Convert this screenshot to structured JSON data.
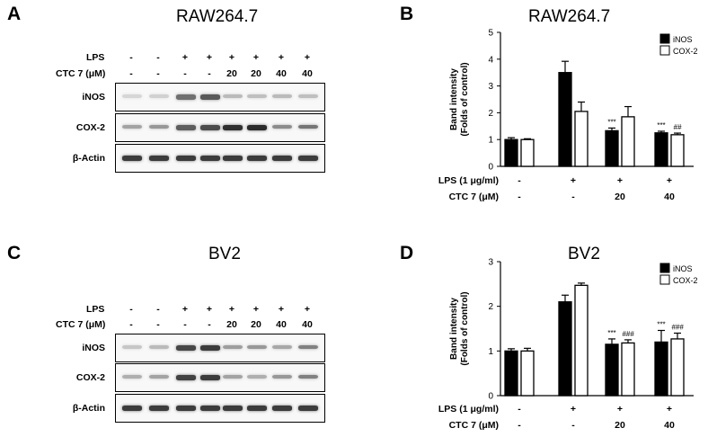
{
  "panels": {
    "A": {
      "letter": "A",
      "title": "RAW264.7"
    },
    "B": {
      "letter": "B",
      "title": "RAW264.7"
    },
    "C": {
      "letter": "C",
      "title": "BV2"
    },
    "D": {
      "letter": "D",
      "title": "BV2"
    }
  },
  "blots": {
    "lps_label": "LPS",
    "ctc_label": "CTC 7 (μM)",
    "lps_values": [
      "-",
      "-",
      "+",
      "+",
      "+",
      "+",
      "+",
      "+"
    ],
    "ctc_values": [
      "-",
      "-",
      "-",
      "-",
      "20",
      "20",
      "40",
      "40"
    ],
    "rows": [
      "iNOS",
      "COX-2",
      "β-Actin"
    ],
    "intensity_A": {
      "iNOS": [
        0.18,
        0.2,
        0.62,
        0.72,
        0.3,
        0.28,
        0.3,
        0.28
      ],
      "COX-2": [
        0.4,
        0.45,
        0.7,
        0.78,
        0.9,
        0.92,
        0.5,
        0.6
      ],
      "β-Actin": [
        0.85,
        0.85,
        0.85,
        0.85,
        0.85,
        0.85,
        0.85,
        0.85
      ]
    },
    "intensity_C": {
      "iNOS": [
        0.25,
        0.3,
        0.8,
        0.85,
        0.42,
        0.45,
        0.38,
        0.55
      ],
      "COX-2": [
        0.35,
        0.4,
        0.82,
        0.85,
        0.4,
        0.35,
        0.45,
        0.55
      ],
      "β-Actin": [
        0.85,
        0.85,
        0.85,
        0.85,
        0.85,
        0.85,
        0.85,
        0.85
      ]
    }
  },
  "chart_data": [
    {
      "panel": "B",
      "type": "bar",
      "title": "RAW264.7",
      "ylabel_lines": [
        "Band intensity",
        "(Folds of control)"
      ],
      "ylim": [
        0,
        5
      ],
      "yticks": [
        0,
        1,
        2,
        3,
        4,
        5
      ],
      "legend_position": "top-right",
      "condition_rows": [
        {
          "label": "LPS (1 μg/ml)",
          "values": [
            "-",
            "+",
            "+",
            "+"
          ]
        },
        {
          "label": "CTC 7 (μM)",
          "values": [
            "-",
            "-",
            "20",
            "40"
          ]
        }
      ],
      "series": [
        {
          "name": "iNOS",
          "color": "#000000",
          "values": [
            1.0,
            3.5,
            1.33,
            1.25
          ],
          "errors": [
            0.07,
            0.42,
            0.1,
            0.06
          ],
          "annotations": [
            "",
            "",
            "***",
            "***"
          ]
        },
        {
          "name": "COX-2",
          "color": "#ffffff",
          "values": [
            1.0,
            2.05,
            1.85,
            1.18
          ],
          "errors": [
            0.03,
            0.35,
            0.38,
            0.06
          ],
          "annotations": [
            "",
            "",
            "",
            "##"
          ]
        }
      ]
    },
    {
      "panel": "D",
      "type": "bar",
      "title": "BV2",
      "ylabel_lines": [
        "Band intensity",
        "(Folds of control)"
      ],
      "ylim": [
        0,
        3
      ],
      "yticks": [
        0,
        1,
        2,
        3
      ],
      "legend_position": "top-right",
      "condition_rows": [
        {
          "label": "LPS (1 μg/ml)",
          "values": [
            "-",
            "+",
            "+",
            "+"
          ]
        },
        {
          "label": "CTC 7 (μM)",
          "values": [
            "-",
            "-",
            "20",
            "40"
          ]
        }
      ],
      "series": [
        {
          "name": "iNOS",
          "color": "#000000",
          "values": [
            1.0,
            2.1,
            1.15,
            1.2
          ],
          "errors": [
            0.05,
            0.15,
            0.12,
            0.26
          ],
          "annotations": [
            "",
            "",
            "***",
            "***"
          ]
        },
        {
          "name": "COX-2",
          "color": "#ffffff",
          "values": [
            1.0,
            2.47,
            1.18,
            1.27
          ],
          "errors": [
            0.06,
            0.05,
            0.07,
            0.13
          ],
          "annotations": [
            "",
            "",
            "###",
            "###"
          ]
        }
      ]
    }
  ]
}
